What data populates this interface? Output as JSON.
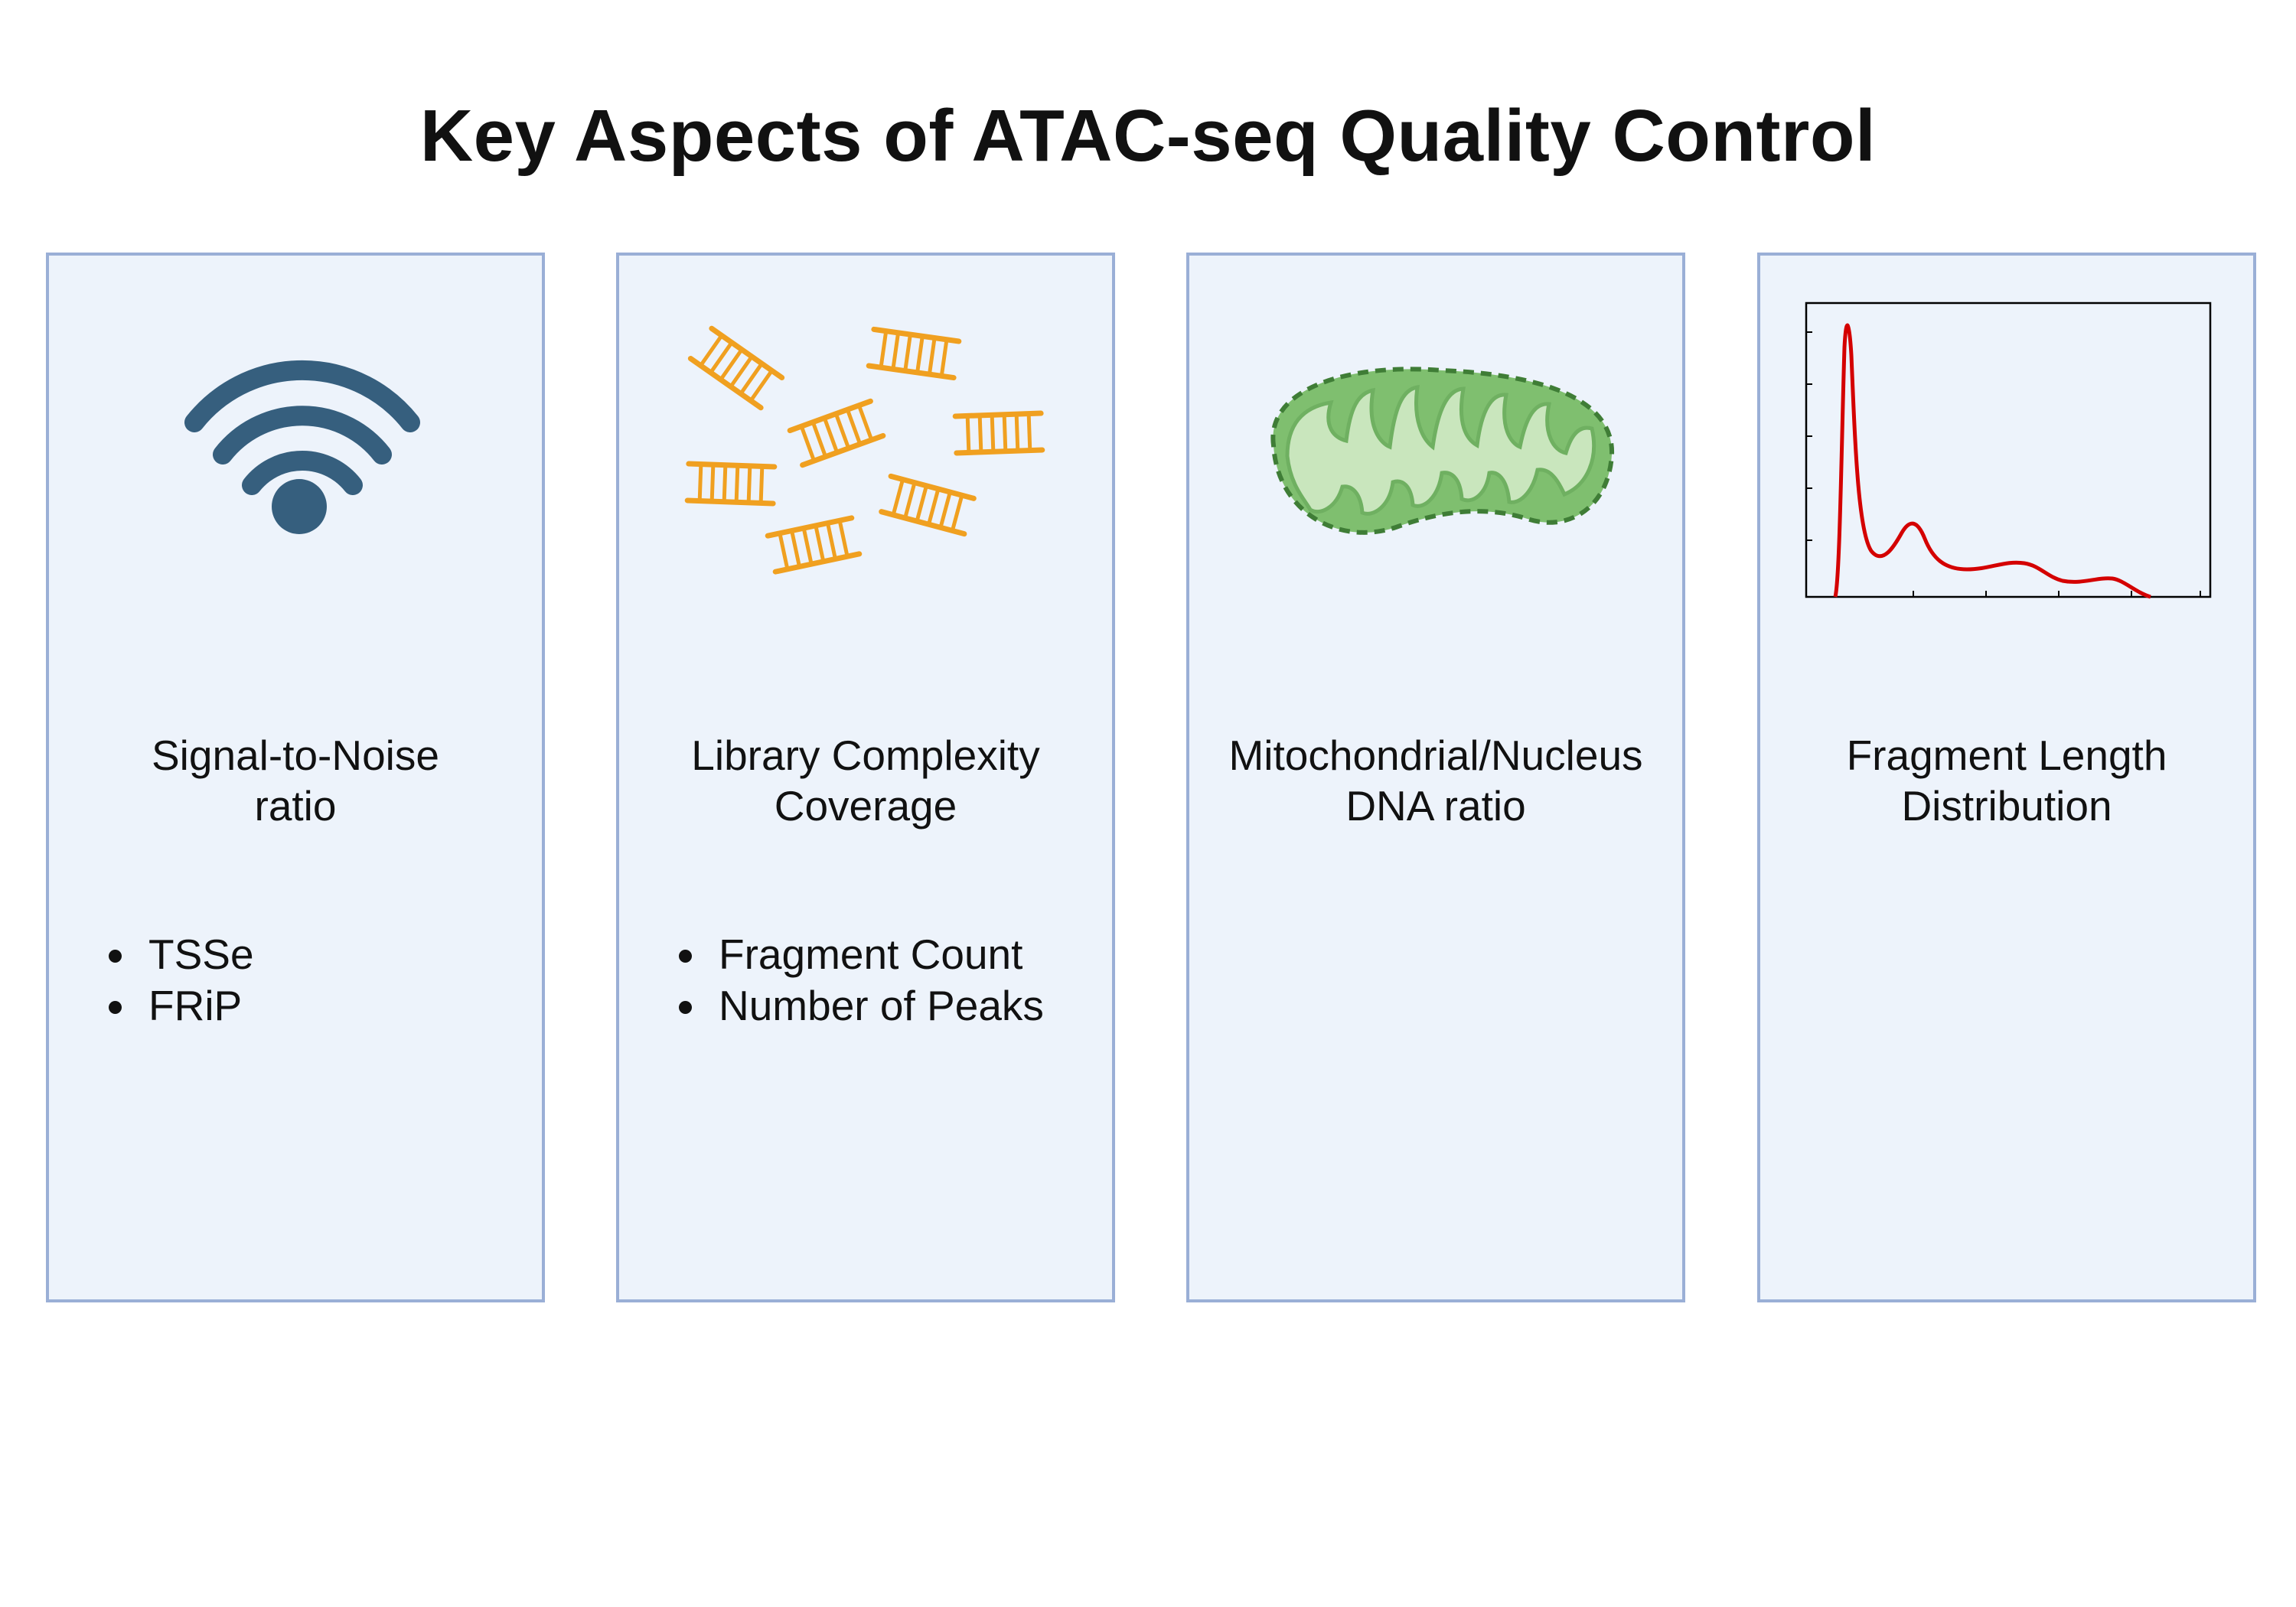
{
  "title": "Key Aspects of ATAC-seq Quality Control",
  "colors": {
    "panel_background": "#edf3fb",
    "panel_border": "#9aafd6",
    "wifi_icon": "#365f7e",
    "dna_fragment": "#f0a020",
    "mitochondria_fill": "#bfe0b3",
    "mitochondria_outline": "#5aa353",
    "curve": "#d40000"
  },
  "panels": [
    {
      "icon": "wifi-signal-icon",
      "heading": "Signal-to-Noise\nratio",
      "bullets": [
        "TSSe",
        "FRiP"
      ]
    },
    {
      "icon": "dna-fragments-icon",
      "heading": "Library Complexity\nCoverage",
      "bullets": [
        "Fragment Count",
        "Number of Peaks"
      ]
    },
    {
      "icon": "mitochondrion-icon",
      "heading": "Mitochondrial/Nucleus\nDNA ratio",
      "bullets": []
    },
    {
      "icon": "fragment-length-plot-icon",
      "heading": "Fragment Length\nDistribution",
      "bullets": []
    }
  ]
}
